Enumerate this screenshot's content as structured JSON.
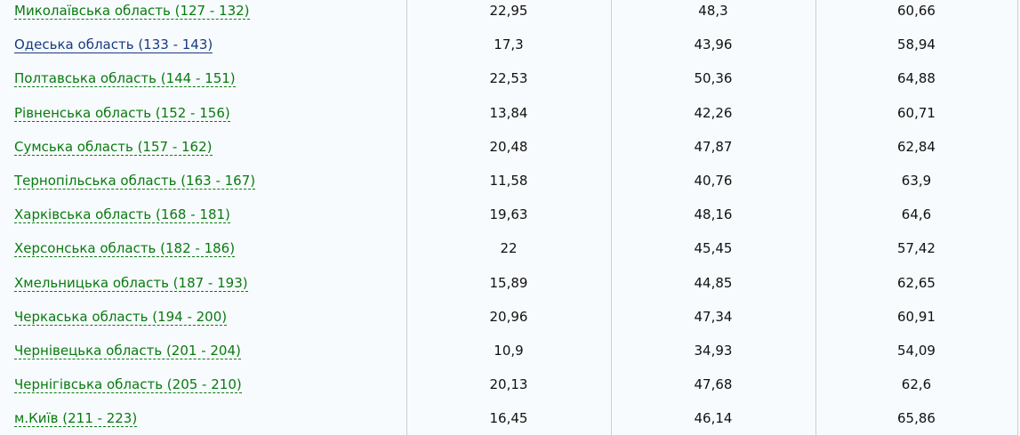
{
  "rows": [
    {
      "region": "Миколаївська область (127 - 132)",
      "v1": "22,95",
      "v2": "48,3",
      "v3": "60,66"
    },
    {
      "region": "Одеська область (133 - 143)",
      "v1": "17,3",
      "v2": "43,96",
      "v3": "58,94"
    },
    {
      "region": "Полтавська область (144 - 151)",
      "v1": "22,53",
      "v2": "50,36",
      "v3": "64,88"
    },
    {
      "region": "Рівненська область (152 - 156)",
      "v1": "13,84",
      "v2": "42,26",
      "v3": "60,71"
    },
    {
      "region": "Сумська область (157 - 162)",
      "v1": "20,48",
      "v2": "47,87",
      "v3": "62,84"
    },
    {
      "region": "Тернопільська область (163 - 167)",
      "v1": "11,58",
      "v2": "40,76",
      "v3": "63,9"
    },
    {
      "region": "Харківська область (168 - 181)",
      "v1": "19,63",
      "v2": "48,16",
      "v3": "64,6"
    },
    {
      "region": "Херсонська область (182 - 186)",
      "v1": "22",
      "v2": "45,45",
      "v3": "57,42"
    },
    {
      "region": "Хмельницька область (187 - 193)",
      "v1": "15,89",
      "v2": "44,85",
      "v3": "62,65"
    },
    {
      "region": "Черкаська область (194 - 200)",
      "v1": "20,96",
      "v2": "47,34",
      "v3": "60,91"
    },
    {
      "region": "Чернівецька область (201 - 204)",
      "v1": "10,9",
      "v2": "34,93",
      "v3": "54,09"
    },
    {
      "region": "Чернігівська область (205 - 210)",
      "v1": "20,13",
      "v2": "47,68",
      "v3": "62,6"
    },
    {
      "region": "м.Київ (211 - 223)",
      "v1": "16,45",
      "v2": "46,14",
      "v3": "65,86"
    }
  ],
  "colors": {
    "link": "#0a7a10",
    "visited_link": "#1a3a80",
    "background": "#f7fbfd"
  }
}
